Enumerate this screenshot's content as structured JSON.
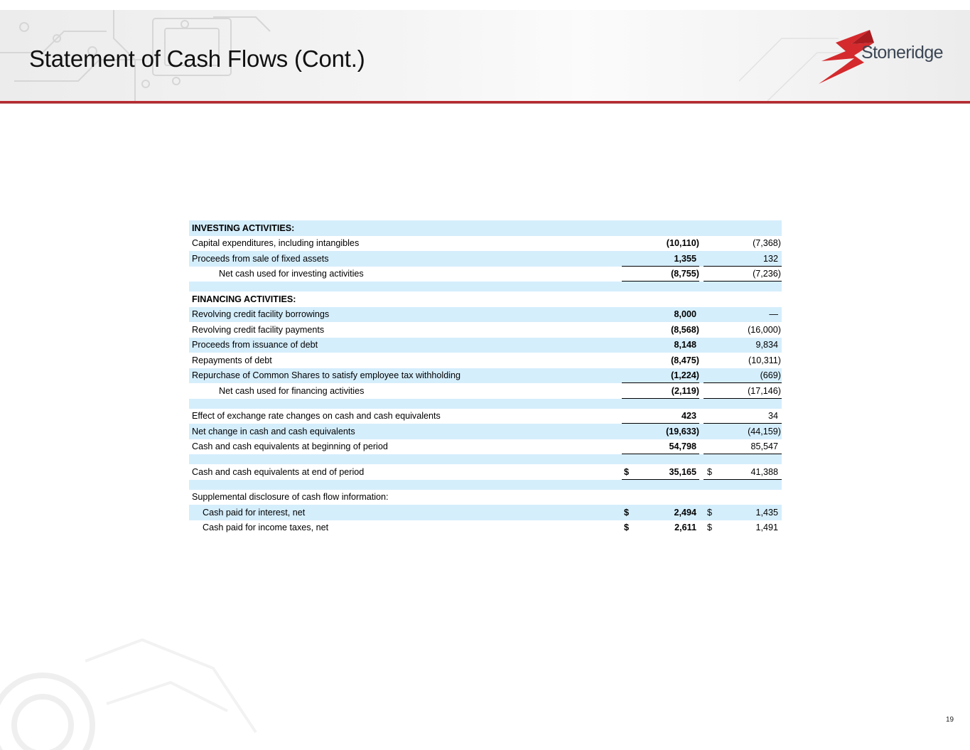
{
  "title": "Statement of Cash Flows (Cont.)",
  "logo_text": "Stoneridge",
  "page_number": "19",
  "colors": {
    "band": "#d5eefc",
    "accent_red": "#c9343a",
    "logo_text": "#3c4654"
  },
  "table": {
    "investing_header": "INVESTING ACTIVITIES:",
    "capex": {
      "label": "Capital expenditures, including intangibles",
      "cur": "(10,110)",
      "prior": "(7,368)"
    },
    "proceeds_sale": {
      "label": "Proceeds from sale of fixed assets",
      "cur": "1,355",
      "prior": "132"
    },
    "net_investing": {
      "label": "Net cash used for investing activities",
      "cur": "(8,755)",
      "prior": "(7,236)"
    },
    "financing_header": "FINANCING ACTIVITIES:",
    "rcf_borrow": {
      "label": "Revolving credit facility borrowings",
      "cur": "8,000",
      "prior": "—"
    },
    "rcf_pay": {
      "label": "Revolving credit facility payments",
      "cur": "(8,568)",
      "prior": "(16,000)"
    },
    "debt_issue": {
      "label": "Proceeds from issuance of debt",
      "cur": "8,148",
      "prior": "9,834"
    },
    "debt_repay": {
      "label": "Repayments of debt",
      "cur": "(8,475)",
      "prior": "(10,311)"
    },
    "repurchase": {
      "label": "Repurchase of Common Shares to satisfy employee tax withholding",
      "cur": "(1,224)",
      "prior": "(669)"
    },
    "net_financing": {
      "label": "Net cash used for financing activities",
      "cur": "(2,119)",
      "prior": "(17,146)"
    },
    "fx_effect": {
      "label": "Effect of exchange rate changes on cash and cash equivalents",
      "cur": "423",
      "prior": "34"
    },
    "net_change": {
      "label": "Net change in cash and cash equivalents",
      "cur": "(19,633)",
      "prior": "(44,159)"
    },
    "cash_begin": {
      "label": "Cash and cash equivalents at beginning of period",
      "cur": "54,798",
      "prior": "85,547"
    },
    "cash_end": {
      "label": "Cash and cash equivalents at end of period",
      "cur_sym": "$",
      "cur": "35,165",
      "prior_sym": "$",
      "prior": "41,388"
    },
    "supplemental_header": "Supplemental disclosure of cash flow information:",
    "interest": {
      "label": "Cash paid for interest, net",
      "cur_sym": "$",
      "cur": "2,494",
      "prior_sym": "$",
      "prior": "1,435"
    },
    "taxes": {
      "label": "Cash paid for income taxes, net",
      "cur_sym": "$",
      "cur": "2,611",
      "prior_sym": "$",
      "prior": "1,491"
    }
  }
}
